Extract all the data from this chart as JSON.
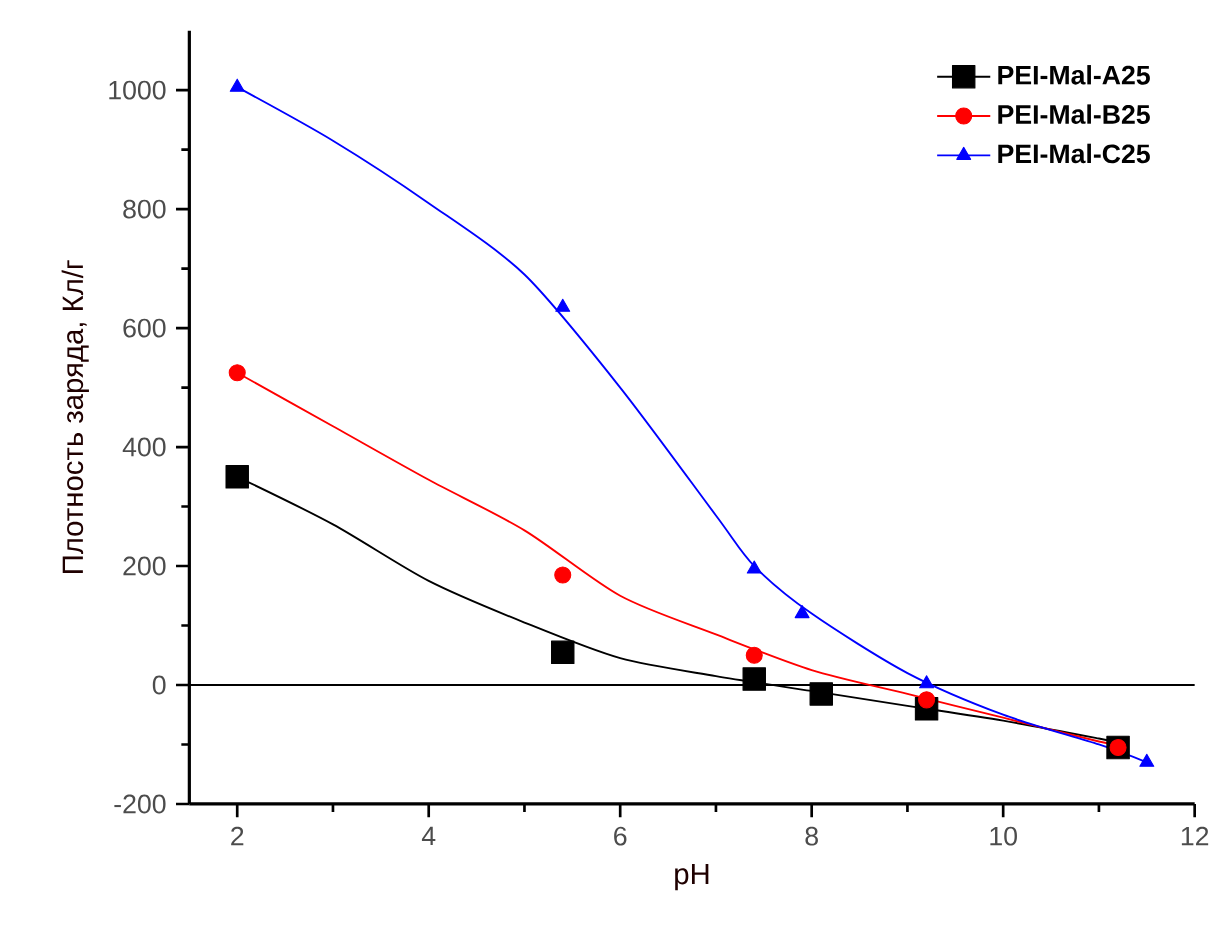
{
  "chart_data": {
    "type": "scatter",
    "xlabel": "pH",
    "ylabel": "Плотность заряда, Кл/г",
    "xlim": [
      1.5,
      12
    ],
    "ylim": [
      -200,
      1100
    ],
    "xticks": [
      2,
      4,
      6,
      8,
      10,
      12
    ],
    "yticks": [
      -200,
      0,
      200,
      400,
      600,
      800,
      1000
    ],
    "legend": "top right",
    "grid": false,
    "ref_lines": [
      {
        "axis": "y",
        "value": 0,
        "color": "#000000"
      }
    ],
    "series": [
      {
        "name": "PEI-Mal-A25",
        "color": "#000000",
        "marker": "square",
        "x": [
          2,
          5.4,
          7.4,
          8.1,
          9.2,
          11.2
        ],
        "values": [
          350,
          55,
          10,
          -15,
          -40,
          -105
        ]
      },
      {
        "name": "PEI-Mal-B25",
        "color": "#ff0000",
        "marker": "circle",
        "x": [
          2,
          5.4,
          7.4,
          9.2,
          11.2
        ],
        "values": [
          525,
          185,
          50,
          -25,
          -105
        ]
      },
      {
        "name": "PEI-Mal-C25",
        "color": "#0000ff",
        "marker": "triangle",
        "x": [
          2,
          5.4,
          7.4,
          7.9,
          9.2,
          11.5
        ],
        "values": [
          1005,
          635,
          195,
          120,
          2,
          -130
        ]
      },
      {
        "type": "line",
        "color": "#000000",
        "marker": "none",
        "x": [
          2,
          3,
          4,
          5,
          6,
          7,
          8,
          9,
          10,
          11,
          11.2
        ],
        "values": [
          350,
          270,
          175,
          105,
          45,
          15,
          -10,
          -35,
          -60,
          -90,
          -97
        ]
      },
      {
        "type": "line",
        "color": "#ff0000",
        "marker": "none",
        "x": [
          2,
          3,
          4,
          5,
          6,
          7,
          8,
          9,
          10,
          11,
          11.2
        ],
        "values": [
          525,
          435,
          345,
          260,
          150,
          85,
          25,
          -15,
          -55,
          -95,
          -100
        ]
      },
      {
        "type": "line",
        "color": "#0000ff",
        "marker": "none",
        "x": [
          2,
          3,
          4,
          5,
          6,
          7,
          7.4,
          8,
          9,
          10,
          11,
          11.5
        ],
        "values": [
          1005,
          915,
          810,
          690,
          500,
          285,
          200,
          120,
          20,
          -50,
          -100,
          -130
        ]
      }
    ]
  }
}
